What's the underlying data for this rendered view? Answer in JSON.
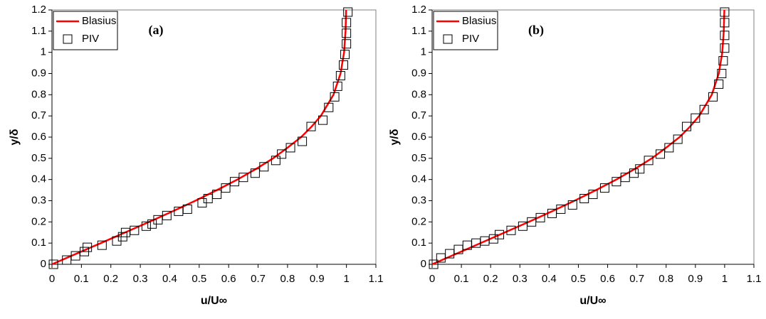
{
  "chart_data": [
    {
      "type": "line",
      "annotation": "(a)",
      "xlabel": "u/U∞",
      "ylabel": "y/δ",
      "xlim": [
        0,
        1.1
      ],
      "ylim": [
        0,
        1.2
      ],
      "xticks": [
        0,
        0.1,
        0.2,
        0.3,
        0.4,
        0.5,
        0.6,
        0.7,
        0.8,
        0.9,
        1,
        1.1
      ],
      "yticks": [
        0,
        0.1,
        0.2,
        0.3,
        0.4,
        0.5,
        0.6,
        0.7,
        0.8,
        0.9,
        1,
        1.1,
        1.2
      ],
      "legend": "upper left",
      "series": [
        {
          "name": "Blasius",
          "color": "#ff0000",
          "marker": "none",
          "x": [
            0,
            0.083,
            0.166,
            0.248,
            0.33,
            0.41,
            0.487,
            0.56,
            0.63,
            0.693,
            0.751,
            0.8,
            0.846,
            0.882,
            0.913,
            0.956,
            0.98,
            0.992,
            0.997,
            0.999
          ],
          "values": [
            0,
            0.05,
            0.1,
            0.15,
            0.2,
            0.25,
            0.3,
            0.35,
            0.4,
            0.45,
            0.5,
            0.55,
            0.6,
            0.65,
            0.7,
            0.8,
            0.9,
            1,
            1.1,
            1.2
          ]
        },
        {
          "name": "PIV",
          "color": "#000000",
          "marker": "square",
          "x": [
            0.005,
            0.05,
            0.08,
            0.11,
            0.12,
            0.17,
            0.22,
            0.24,
            0.25,
            0.28,
            0.32,
            0.34,
            0.36,
            0.39,
            0.43,
            0.46,
            0.51,
            0.53,
            0.56,
            0.59,
            0.62,
            0.65,
            0.69,
            0.72,
            0.76,
            0.78,
            0.81,
            0.85,
            0.88,
            0.92,
            0.94,
            0.96,
            0.97,
            0.98,
            0.99,
            0.995,
            1.0,
            1.0,
            1.0,
            1.005
          ],
          "values": [
            0.0,
            0.02,
            0.04,
            0.06,
            0.08,
            0.09,
            0.11,
            0.13,
            0.15,
            0.16,
            0.18,
            0.19,
            0.21,
            0.23,
            0.25,
            0.26,
            0.29,
            0.31,
            0.33,
            0.36,
            0.39,
            0.41,
            0.43,
            0.46,
            0.49,
            0.52,
            0.55,
            0.58,
            0.65,
            0.68,
            0.74,
            0.79,
            0.84,
            0.89,
            0.94,
            0.99,
            1.04,
            1.09,
            1.14,
            1.19
          ]
        }
      ]
    },
    {
      "type": "line",
      "annotation": "(b)",
      "xlabel": "u/U∞",
      "ylabel": "y/δ",
      "xlim": [
        0,
        1.1
      ],
      "ylim": [
        0,
        1.2
      ],
      "xticks": [
        0,
        0.1,
        0.2,
        0.3,
        0.4,
        0.5,
        0.6,
        0.7,
        0.8,
        0.9,
        1,
        1.1
      ],
      "yticks": [
        0,
        0.1,
        0.2,
        0.3,
        0.4,
        0.5,
        0.6,
        0.7,
        0.8,
        0.9,
        1,
        1.1,
        1.2
      ],
      "legend": "upper left",
      "series": [
        {
          "name": "Blasius",
          "color": "#ff0000",
          "marker": "none",
          "x": [
            0,
            0.083,
            0.166,
            0.248,
            0.33,
            0.41,
            0.487,
            0.56,
            0.63,
            0.693,
            0.751,
            0.8,
            0.846,
            0.882,
            0.913,
            0.956,
            0.98,
            0.992,
            0.997,
            0.999
          ],
          "values": [
            0,
            0.05,
            0.1,
            0.15,
            0.2,
            0.25,
            0.3,
            0.35,
            0.4,
            0.45,
            0.5,
            0.55,
            0.6,
            0.65,
            0.7,
            0.8,
            0.9,
            1,
            1.1,
            1.2
          ]
        },
        {
          "name": "PIV",
          "color": "#000000",
          "marker": "square",
          "x": [
            0.005,
            0.03,
            0.06,
            0.09,
            0.12,
            0.15,
            0.18,
            0.21,
            0.23,
            0.27,
            0.31,
            0.34,
            0.37,
            0.41,
            0.44,
            0.48,
            0.52,
            0.55,
            0.59,
            0.63,
            0.66,
            0.69,
            0.71,
            0.74,
            0.78,
            0.81,
            0.84,
            0.87,
            0.9,
            0.93,
            0.96,
            0.98,
            0.99,
            0.995,
            1.0,
            1.0,
            1.0,
            1.0
          ],
          "values": [
            0.0,
            0.03,
            0.05,
            0.07,
            0.09,
            0.1,
            0.11,
            0.12,
            0.14,
            0.16,
            0.18,
            0.2,
            0.22,
            0.24,
            0.26,
            0.28,
            0.31,
            0.33,
            0.36,
            0.39,
            0.41,
            0.43,
            0.45,
            0.49,
            0.52,
            0.55,
            0.59,
            0.65,
            0.69,
            0.73,
            0.79,
            0.85,
            0.9,
            0.96,
            1.02,
            1.08,
            1.14,
            1.19
          ]
        }
      ]
    }
  ]
}
